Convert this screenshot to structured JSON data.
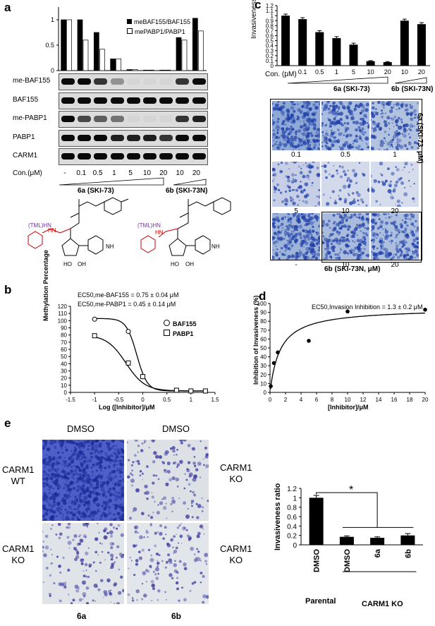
{
  "panels": {
    "a": "a",
    "b": "b",
    "c": "c",
    "d": "d",
    "e": "e"
  },
  "panel_a": {
    "legend": [
      "meBAF155/BAF155",
      "mePABP1/PABP1"
    ],
    "blots": [
      "me-BAF155",
      "BAF155",
      "me-PABP1",
      "PABP1",
      "CARM1"
    ],
    "con_label": "Con.(μM)",
    "lanes": [
      "-",
      "0.1",
      "0.5",
      "1",
      "5",
      "10",
      "20",
      "10",
      "20"
    ],
    "group1": "6a (SKI-73)",
    "group2": "6b (SKI-73N)",
    "tml1": "(TML)HN",
    "tml2": "(TML)HN",
    "nh2_1": "NH",
    "nh2_2": "NH",
    "nh3_1": "N",
    "nh3_2": "N",
    "ho1": "HO",
    "oh1": "OH",
    "ho2": "HO",
    "oh2": "OH",
    "hn1": "HN",
    "hn2": "HN"
  },
  "panel_c": {
    "ylabel": "Invasiveness ratio",
    "con_label": "Con. (μM)",
    "lanes": [
      "-",
      "0.1",
      "0.5",
      "1",
      "5",
      "10",
      "20",
      "10",
      "20"
    ],
    "group1": "6a (SKI-73)",
    "group2": "6b (SKI-73N)",
    "side_label": "6a (SKI-73, μM)",
    "micro_labels_r1": [
      "0.1",
      "0.5",
      "1"
    ],
    "micro_labels_r2": [
      "5",
      "10",
      "20"
    ],
    "micro_labels_r3": [
      "-",
      "10",
      "20"
    ],
    "bottom_label": "6b (SKI-73N, μM)"
  },
  "panel_b": {
    "ec1": "EC50,me-BAF155 = 0.75 ± 0.04 μM",
    "ec2": "EC50,me-PABP1 = 0.45 ± 0.14 μM",
    "ylabel": "Methylation Percentage",
    "xlabel": "Log ([Inhibitor]/μM",
    "legend": [
      "BAF155",
      "PABP1"
    ]
  },
  "panel_d": {
    "ec": "EC50,Invasion Inhibition = 1.3 ± 0.2 μM",
    "ylabel": "Inhibition of Invasiveness (%)",
    "xlabel": "[Inhibitor]/μM"
  },
  "panel_e": {
    "top_labels": [
      "DMSO",
      "DMSO"
    ],
    "left_labels": [
      "CARM1\nWT",
      "CARM1\nKO"
    ],
    "right_labels": [
      "CARM1\nKO",
      "CARM1\nKO"
    ],
    "bottom_labels": [
      "6a",
      "6b"
    ],
    "ylabel": "Invasiveness ratio",
    "star": "*",
    "group1": "Parental",
    "group2": "CARM1 KO"
  },
  "chart_data": [
    {
      "type": "bar",
      "id": "a",
      "categories": [
        "-",
        "0.1",
        "0.5",
        "1",
        "5",
        "10",
        "20",
        "10",
        "20"
      ],
      "series": [
        {
          "name": "meBAF155/BAF155",
          "values": [
            1.0,
            1.0,
            0.75,
            0.23,
            0.02,
            0.01,
            0.01,
            0.65,
            1.03
          ]
        },
        {
          "name": "mePABP1/PABP1",
          "values": [
            1.0,
            0.6,
            0.42,
            0.23,
            0.02,
            0.01,
            0.01,
            0.6,
            0.78
          ]
        }
      ],
      "ylim": [
        0,
        1.25
      ],
      "yticks": [
        0,
        0.5,
        1
      ],
      "colors": [
        "#000000",
        "#ffffff"
      ]
    },
    {
      "type": "bar",
      "id": "c",
      "categories": [
        "-",
        "0.1",
        "0.5",
        "1",
        "5",
        "10",
        "20",
        "10",
        "20"
      ],
      "values": [
        1.0,
        0.93,
        0.67,
        0.55,
        0.42,
        0.09,
        0.07,
        0.9,
        0.83
      ],
      "errors": [
        0.03,
        0.03,
        0.03,
        0.03,
        0.03,
        0.01,
        0.01,
        0.03,
        0.03
      ],
      "ylabel": "Invasiveness ratio",
      "ylim": [
        0,
        1.2
      ],
      "yticks": [
        0,
        0.1,
        0.2,
        0.3,
        0.4,
        0.5,
        0.6,
        0.7,
        0.8,
        0.9,
        1,
        1.1,
        1.2
      ]
    },
    {
      "type": "line",
      "id": "b",
      "series": [
        {
          "name": "BAF155",
          "marker": "circle",
          "x": [
            -1.0,
            -0.3,
            0,
            0.7,
            1,
            1.3
          ],
          "y": [
            102,
            85,
            22,
            3,
            2,
            2
          ]
        },
        {
          "name": "PABP1",
          "marker": "square",
          "x": [
            -1.0,
            -0.3,
            0,
            0.7,
            1,
            1.3
          ],
          "y": [
            79,
            41,
            22,
            3,
            2,
            2
          ]
        }
      ],
      "xlabel": "Log ([Inhibitor]/μM",
      "ylabel": "Methylation Percentage",
      "xlim": [
        -1.5,
        1.5
      ],
      "ylim": [
        0,
        120
      ],
      "xticks": [
        -1.5,
        -1,
        -0.5,
        0,
        0.5,
        1,
        1.5
      ],
      "yticks": [
        0,
        10,
        20,
        30,
        40,
        50,
        60,
        70,
        80,
        90,
        100,
        110,
        120
      ]
    },
    {
      "type": "scatter",
      "id": "d",
      "x": [
        0.1,
        0.5,
        1,
        5,
        10,
        20
      ],
      "y": [
        7,
        33,
        45,
        58,
        91,
        93
      ],
      "fit_ec50": 1.3,
      "fit_max": 95,
      "xlabel": "[Inhibitor]/μM",
      "ylabel": "Inhibition of Invasiveness (%)",
      "xlim": [
        0,
        20
      ],
      "ylim": [
        0,
        100
      ],
      "xticks": [
        0,
        2,
        4,
        6,
        8,
        10,
        12,
        14,
        16,
        18,
        20
      ],
      "yticks": [
        0,
        10,
        20,
        30,
        40,
        50,
        60,
        70,
        80,
        90,
        100
      ]
    },
    {
      "type": "bar",
      "id": "e",
      "categories": [
        "DMSO",
        "DMSO",
        "6a",
        "6b"
      ],
      "values": [
        1.0,
        0.17,
        0.15,
        0.2
      ],
      "errors": [
        0.05,
        0.02,
        0.02,
        0.04
      ],
      "ylabel": "Invasiveness ratio",
      "ylim": [
        0,
        1.2
      ],
      "yticks": [
        0,
        0.2,
        0.4,
        0.6,
        0.8,
        1,
        1.2
      ]
    }
  ]
}
